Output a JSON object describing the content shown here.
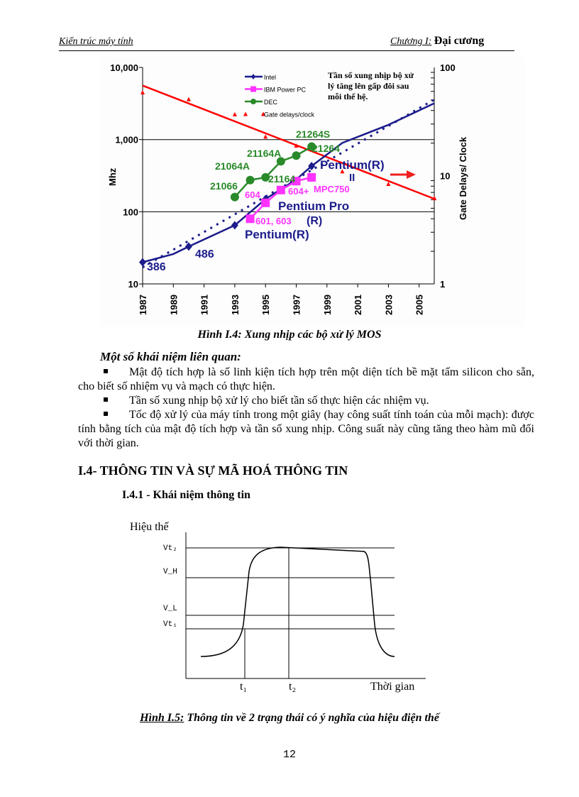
{
  "header": {
    "left": "Kiến trúc máy tính",
    "right_chapter": "Chương I:",
    "right_title": "Đại cương"
  },
  "figure1": {
    "caption": "Hình I.4: Xung nhịp các bộ xử lý MOS",
    "annotation": [
      "Tần số xung nhịp bộ xử",
      "lý tăng lên gấp đôi sau",
      "mỗi thế hệ."
    ],
    "chart_data": {
      "type": "line",
      "ylabel": "Mhz",
      "y2label": "Gate Delays/ Clock",
      "ylim": [
        10,
        10000
      ],
      "y_scale": "log",
      "y_ticks": [
        "10",
        "100",
        "1,000",
        "10,000"
      ],
      "y2lim": [
        1,
        100
      ],
      "y2_scale": "log",
      "y2_ticks": [
        "1",
        "10",
        "100"
      ],
      "xlim": [
        1987,
        2006
      ],
      "x_ticks": [
        "1987",
        "1989",
        "1991",
        "1993",
        "1995",
        "1997",
        "1999",
        "2001",
        "2003",
        "2005"
      ],
      "grid": "horizontal at 100 and 1,000",
      "legend_position": "top-center",
      "series": [
        {
          "name": "Intel",
          "color": "#1c1c8c",
          "axis": "left",
          "x": [
            1987,
            1989,
            1990,
            1993,
            1995,
            1997,
            1998,
            2000,
            2003,
            2006
          ],
          "y": [
            20,
            26,
            33,
            65,
            150,
            280,
            430,
            900,
            1600,
            3200
          ],
          "markers": [
            1987,
            1990,
            1993,
            1995,
            1998
          ]
        },
        {
          "name": "IBM Power PC",
          "color": "#ff33ff",
          "axis": "left",
          "x": [
            1994,
            1995,
            1996,
            1997,
            1998
          ],
          "y": [
            80,
            133,
            200,
            266,
            300
          ]
        },
        {
          "name": "DEC",
          "color": "#2a8a2a",
          "axis": "left",
          "x": [
            1993,
            1994,
            1995,
            1996,
            1997,
            1998
          ],
          "y": [
            160,
            275,
            300,
            500,
            600,
            800
          ]
        },
        {
          "name": "Gate delays/clock",
          "color": "#ff0000",
          "axis": "right",
          "x": [
            1987,
            1990,
            1993,
            1995,
            1997,
            2000,
            2003,
            2006
          ],
          "y": [
            59,
            51,
            37,
            23,
            19,
            11,
            8.4,
            6.2
          ],
          "trend": [
            [
              1987,
              68
            ],
            [
              2006,
              6.1
            ]
          ]
        }
      ],
      "labels": [
        {
          "text": "386",
          "color": "#1c1c8c"
        },
        {
          "text": "486",
          "color": "#1c1c8c"
        },
        {
          "text": "Pentium(R)",
          "color": "#1c1c8c"
        },
        {
          "text": "Pentium Pro",
          "color": "#1c1c8c"
        },
        {
          "text": "(R)",
          "color": "#1c1c8c"
        },
        {
          "text": "Pentium(R)",
          "color": "#1c1c8c"
        },
        {
          "text": "II",
          "color": "#1c1c8c"
        },
        {
          "text": "601, 603",
          "color": "#ff33ff"
        },
        {
          "text": "604",
          "color": "#ff33ff"
        },
        {
          "text": "604+",
          "color": "#ff33ff"
        },
        {
          "text": "MPC750",
          "color": "#ff33ff"
        },
        {
          "text": "21066",
          "color": "#2a8a2a"
        },
        {
          "text": "21064A",
          "color": "#2a8a2a"
        },
        {
          "text": "21164A",
          "color": "#2a8a2a"
        },
        {
          "text": "21164",
          "color": "#2a8a2a"
        },
        {
          "text": "21264",
          "color": "#2a8a2a"
        },
        {
          "text": "21264S",
          "color": "#2a8a2a"
        }
      ]
    }
  },
  "concepts": {
    "title": "Một số khái niệm liên quan:",
    "items": [
      "Mật độ tích hợp là số linh kiện tích hợp trên một diện tích bề mặt tấm silicon cho sẵn, cho biết số nhiệm vụ và mạch có thực hiện.",
      "Tần số xung nhịp bộ xử lý cho biết tần số thực hiện các nhiệm vụ.",
      "Tốc độ xử lý của máy tính trong một giây (hay công suất tính toán của mỗi mạch): được tính bằng tích của mật độ tích hợp và tần số xung nhịp. Công suất này cũng tăng theo hàm mũ đối với thời gian."
    ]
  },
  "section": {
    "title": "I.4- THÔNG TIN VÀ SỰ MÃ HOÁ THÔNG TIN",
    "subtitle": "I.4.1 - Khái niệm thông tin"
  },
  "figure2": {
    "y_label": "Hiệu thế",
    "x_label": "Thời gian",
    "levels": [
      "Vt₂",
      "V_H",
      "V_L",
      "Vt₁"
    ],
    "times": [
      "t₁",
      "t₂"
    ],
    "caption_prefix": "Hình I.5:",
    "caption_text": " Thông tin về 2 trạng thái có ý nghĩa của hiệu điện thế"
  },
  "page_number": "12"
}
